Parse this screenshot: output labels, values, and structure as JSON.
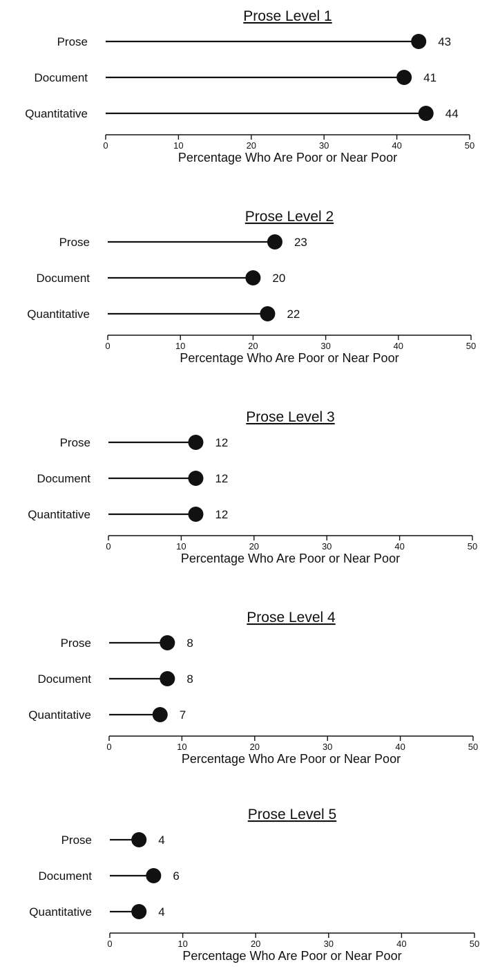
{
  "chart_data": [
    {
      "type": "dot",
      "title": "Prose Level 1",
      "categories": [
        "Prose",
        "Document",
        "Quantitative"
      ],
      "values": [
        43,
        41,
        44
      ],
      "xlabel": "Percentage Who Are Poor or Near Poor",
      "xticks": [
        "0",
        "10",
        "20",
        "30",
        "40",
        "50"
      ],
      "xlim": [
        0,
        50
      ]
    },
    {
      "type": "dot",
      "title": "Prose Level 2",
      "categories": [
        "Prose",
        "Document",
        "Quantitative"
      ],
      "values": [
        23,
        20,
        22
      ],
      "xlabel": "Percentage Who Are Poor or Near Poor",
      "xticks": [
        "0",
        "10",
        "20",
        "30",
        "40",
        "50"
      ],
      "xlim": [
        0,
        50
      ]
    },
    {
      "type": "dot",
      "title": "Prose Level 3",
      "categories": [
        "Prose",
        "Document",
        "Quantitative"
      ],
      "values": [
        12,
        12,
        12
      ],
      "xlabel": "Percentage Who Are Poor or Near Poor",
      "xticks": [
        "0",
        "10",
        "20",
        "30",
        "40",
        "50"
      ],
      "xlim": [
        0,
        50
      ]
    },
    {
      "type": "dot",
      "title": "Prose Level 4",
      "categories": [
        "Prose",
        "Document",
        "Quantitative"
      ],
      "values": [
        8,
        8,
        7
      ],
      "xlabel": "Percentage Who Are Poor or Near Poor",
      "xticks": [
        "0",
        "10",
        "20",
        "30",
        "40",
        "50"
      ],
      "xlim": [
        0,
        50
      ]
    },
    {
      "type": "dot",
      "title": "Prose Level 5",
      "categories": [
        "Prose",
        "Document",
        "Quantitative"
      ],
      "values": [
        4,
        6,
        4
      ],
      "xlabel": "Percentage Who Are Poor or Near Poor",
      "xticks": [
        "0",
        "10",
        "20",
        "30",
        "40",
        "50"
      ],
      "xlim": [
        0,
        50
      ]
    }
  ]
}
